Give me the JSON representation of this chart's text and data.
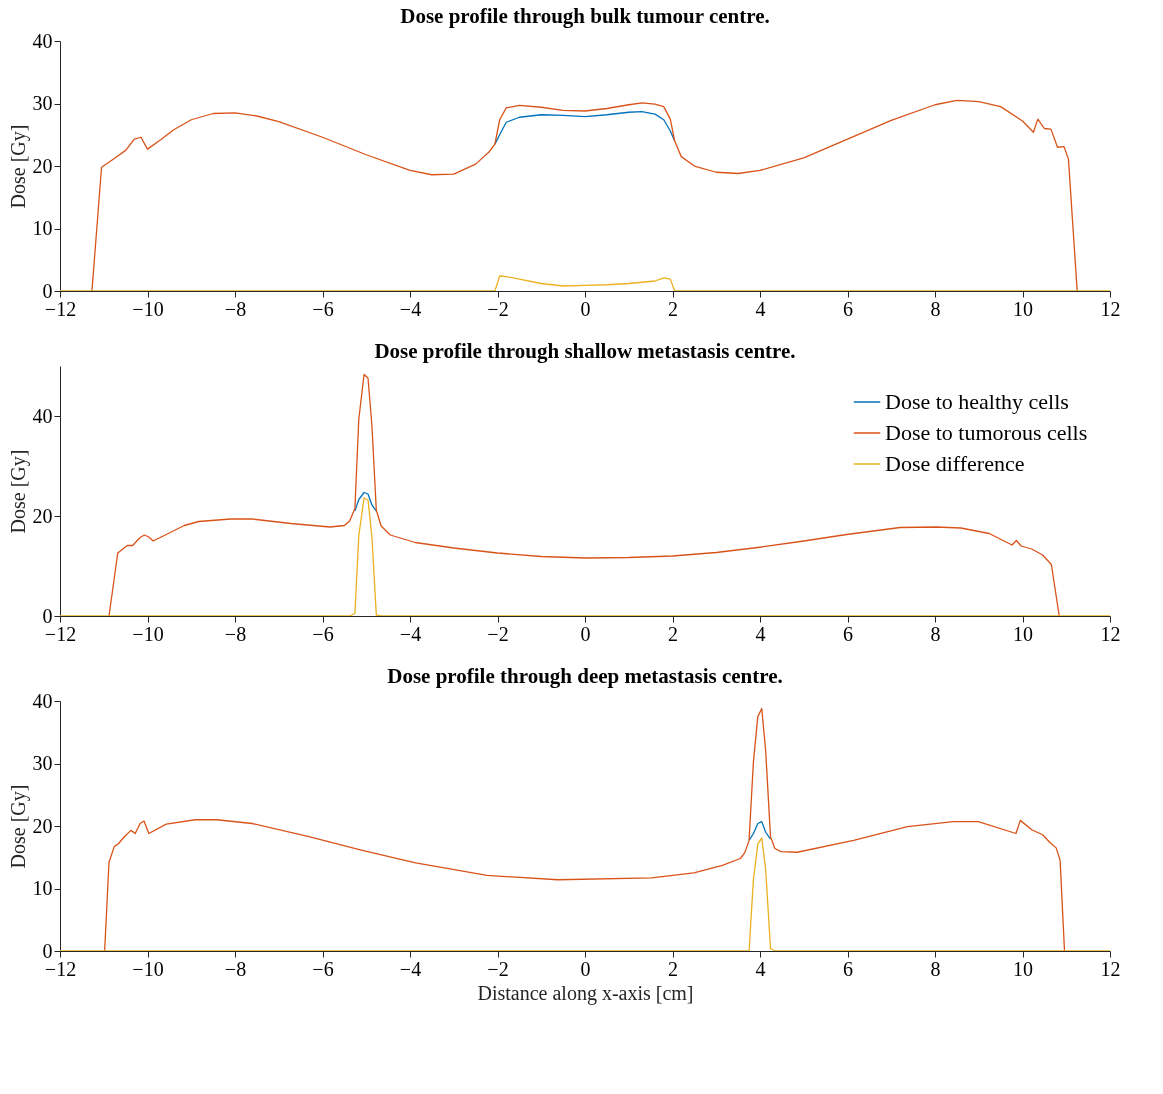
{
  "chart_data": [
    {
      "type": "line",
      "title": "Dose profile through bulk tumour centre.",
      "ylabel": "Dose [Gy]",
      "xlim": [
        -12,
        12
      ],
      "xticks": [
        -12,
        -10,
        -8,
        -6,
        -4,
        -2,
        0,
        2,
        4,
        6,
        8,
        10,
        12
      ],
      "ylim": [
        0,
        40
      ],
      "yticks": [
        0,
        10,
        20,
        30,
        40
      ],
      "grid": false,
      "legend": false,
      "line_style": "solid",
      "x": [
        -12,
        -11.27,
        -11.05,
        -10.8,
        -10.5,
        -10.3,
        -10.15,
        -10.0,
        -9.7,
        -9.4,
        -9.0,
        -8.5,
        -8.0,
        -7.5,
        -7,
        -6,
        -5,
        -4,
        -3.5,
        -3,
        -2.5,
        -2.2,
        -2.06,
        -1.95,
        -1.8,
        -1.5,
        -1,
        -0.5,
        0,
        0.5,
        1,
        1.3,
        1.6,
        1.8,
        1.95,
        2.05,
        2.2,
        2.5,
        3,
        3.5,
        4,
        5,
        6,
        7,
        8,
        8.5,
        9,
        9.5,
        10,
        10.25,
        10.35,
        10.5,
        10.65,
        10.8,
        10.95,
        11.05,
        11.25,
        12
      ],
      "series": [
        {
          "color": "#0072bd",
          "values": [
            null,
            null,
            null,
            null,
            null,
            null,
            null,
            null,
            null,
            null,
            null,
            null,
            null,
            null,
            null,
            null,
            null,
            null,
            null,
            null,
            null,
            null,
            23.5,
            25.0,
            27.0,
            27.8,
            28.2,
            28.1,
            27.9,
            28.2,
            28.6,
            28.7,
            28.3,
            27.4,
            25.6,
            24.0,
            null,
            null,
            null,
            null,
            null,
            null,
            null,
            null,
            null,
            null,
            null,
            null,
            null,
            null,
            null,
            null,
            null,
            null,
            null,
            null,
            null,
            null
          ]
        },
        {
          "color": "#d95319",
          "values": [
            null,
            0,
            19.8,
            21,
            22.5,
            24.3,
            24.6,
            22.7,
            24.2,
            25.8,
            27.4,
            28.4,
            28.5,
            28.0,
            27.1,
            24.6,
            21.8,
            19.3,
            18.6,
            18.7,
            20.3,
            22.2,
            23.5,
            27.4,
            29.3,
            29.7,
            29.4,
            28.9,
            28.8,
            29.2,
            29.8,
            30.1,
            29.9,
            29.5,
            27.5,
            24.0,
            21.5,
            20,
            19,
            18.8,
            19.3,
            21.3,
            24.3,
            27.3,
            29.8,
            30.5,
            30.3,
            29.5,
            27.2,
            25.4,
            27.5,
            26.0,
            25.9,
            23.0,
            23.1,
            21.1,
            0,
            null
          ]
        },
        {
          "color": "#edb120",
          "values": [
            0,
            0,
            0,
            0,
            0,
            0,
            0,
            0,
            0,
            0,
            0,
            0,
            0,
            0,
            0,
            0,
            0,
            0,
            0,
            0,
            0,
            0,
            0,
            2.4,
            2.3,
            1.9,
            1.2,
            0.8,
            0.9,
            1.0,
            1.2,
            1.4,
            1.6,
            2.1,
            1.9,
            0,
            0,
            0,
            0,
            0,
            0,
            0,
            0,
            0,
            0,
            0,
            0,
            0,
            0,
            0,
            0,
            0,
            0,
            0,
            0,
            0,
            0,
            0
          ]
        }
      ]
    },
    {
      "type": "line",
      "title": "Dose profile through shallow metastasis centre.",
      "ylabel": "Dose [Gy]",
      "xlim": [
        -12,
        12
      ],
      "xticks": [
        -12,
        -10,
        -8,
        -6,
        -4,
        -2,
        0,
        2,
        4,
        6,
        8,
        10,
        12
      ],
      "ylim": [
        0,
        50
      ],
      "yticks": [
        0,
        20,
        40
      ],
      "grid": false,
      "legend": "top right",
      "line_style": "solid",
      "x": [
        -12,
        -10.88,
        -10.68,
        -10.46,
        -10.34,
        -10.17,
        -10.07,
        -9.97,
        -9.87,
        -9.64,
        -9.16,
        -8.83,
        -8.1,
        -7.61,
        -6.72,
        -5.83,
        -5.5,
        -5.38,
        -5.26,
        -5.17,
        -5.05,
        -4.96,
        -4.87,
        -4.77,
        -4.66,
        -4.45,
        -3.88,
        -3,
        -2,
        -1,
        0,
        1,
        2,
        3,
        4.04,
        5,
        5.98,
        7.2,
        8.02,
        8.59,
        9.24,
        9.76,
        9.86,
        9.97,
        10.21,
        10.46,
        10.66,
        10.84,
        12
      ],
      "series": [
        {
          "name": "Dose to healthy cells",
          "color": "#0072bd",
          "values": [
            null,
            null,
            null,
            null,
            null,
            null,
            null,
            null,
            null,
            null,
            null,
            null,
            null,
            null,
            null,
            null,
            null,
            null,
            21.0,
            23.3,
            24.7,
            24.4,
            22.2,
            21.0,
            null,
            null,
            null,
            null,
            null,
            null,
            null,
            null,
            null,
            null,
            null,
            null,
            null,
            null,
            null,
            null,
            null,
            null,
            null,
            null,
            null,
            null,
            null,
            null,
            null
          ]
        },
        {
          "name": "Dose to tumorous cells",
          "color": "#d95319",
          "values": [
            null,
            0,
            12.6,
            14.1,
            14.1,
            15.7,
            16.2,
            15.8,
            15.0,
            16.0,
            18.1,
            18.9,
            19.4,
            19.4,
            18.5,
            17.8,
            18.1,
            19.0,
            21.5,
            39.4,
            48.3,
            47.6,
            38.0,
            21.2,
            18.0,
            16.2,
            14.7,
            13.6,
            12.6,
            11.9,
            11.6,
            11.7,
            12.0,
            12.7,
            13.8,
            15.0,
            16.3,
            17.7,
            17.8,
            17.6,
            16.5,
            14.2,
            15.1,
            14.0,
            13.4,
            12.2,
            10.3,
            0,
            null
          ]
        },
        {
          "name": "Dose difference",
          "color": "#edb120",
          "values": [
            0,
            0,
            0,
            0,
            0,
            0,
            0,
            0,
            0,
            0,
            0,
            0,
            0,
            0,
            0,
            0,
            0,
            0,
            0.5,
            16.1,
            23.6,
            23.2,
            15.8,
            0.2,
            0,
            0,
            0,
            0,
            0,
            0,
            0,
            0,
            0,
            0,
            0,
            0,
            0,
            0,
            0,
            0,
            0,
            0,
            0,
            0,
            0,
            0,
            0,
            0,
            0
          ]
        }
      ]
    },
    {
      "type": "line",
      "title": "Dose profile through deep metastasis centre.",
      "ylabel": "Dose [Gy]",
      "xlabel": "Distance along x-axis [cm]",
      "xlim": [
        -12,
        12
      ],
      "xticks": [
        -12,
        -10,
        -8,
        -6,
        -4,
        -2,
        0,
        2,
        4,
        6,
        8,
        10,
        12
      ],
      "ylim": [
        0,
        40
      ],
      "yticks": [
        0,
        10,
        20,
        30,
        40
      ],
      "grid": false,
      "legend": false,
      "line_style": "solid",
      "x": [
        -12,
        -10.98,
        -10.88,
        -10.76,
        -10.66,
        -10.54,
        -10.38,
        -10.28,
        -10.17,
        -10.08,
        -9.97,
        -9.57,
        -8.91,
        -8.42,
        -7.61,
        -6.31,
        -5.09,
        -3.87,
        -2.24,
        -0.62,
        1.52,
        2.49,
        3.14,
        3.55,
        3.65,
        3.75,
        3.85,
        3.95,
        4.04,
        4.13,
        4.24,
        4.34,
        4.48,
        4.85,
        6.14,
        7.37,
        8.42,
        8.99,
        9.85,
        9.95,
        10.21,
        10.46,
        10.62,
        10.77,
        10.86,
        10.96,
        12
      ],
      "series": [
        {
          "color": "#0072bd",
          "values": [
            null,
            null,
            null,
            null,
            null,
            null,
            null,
            null,
            null,
            null,
            null,
            null,
            null,
            null,
            null,
            null,
            null,
            null,
            null,
            null,
            null,
            null,
            null,
            null,
            null,
            17.7,
            18.8,
            20.4,
            20.7,
            19.0,
            17.9,
            null,
            null,
            null,
            null,
            null,
            null,
            null,
            null,
            null,
            null,
            null,
            null,
            null,
            null,
            null,
            null
          ]
        },
        {
          "color": "#d95319",
          "values": [
            null,
            0,
            14.2,
            16.7,
            17.2,
            18.2,
            19.3,
            18.8,
            20.4,
            20.8,
            18.8,
            20.3,
            21.0,
            21.0,
            20.4,
            18.3,
            16.1,
            14.1,
            12.1,
            11.4,
            11.7,
            12.5,
            13.7,
            14.8,
            15.7,
            17.7,
            30.3,
            37.5,
            38.8,
            32.0,
            18.3,
            16.4,
            15.9,
            15.8,
            17.7,
            19.9,
            20.7,
            20.7,
            18.8,
            20.9,
            19.4,
            18.6,
            17.4,
            16.5,
            14.5,
            0,
            null
          ]
        },
        {
          "color": "#edb120",
          "values": [
            0,
            0,
            0,
            0,
            0,
            0,
            0,
            0,
            0,
            0,
            0,
            0,
            0,
            0,
            0,
            0,
            0,
            0,
            0,
            0,
            0,
            0,
            0,
            0,
            0,
            0,
            11.5,
            17.1,
            18.1,
            13.0,
            0.4,
            0,
            0,
            0,
            0,
            0,
            0,
            0,
            0,
            0,
            0,
            0,
            0,
            0,
            0,
            0,
            0
          ]
        }
      ]
    }
  ]
}
